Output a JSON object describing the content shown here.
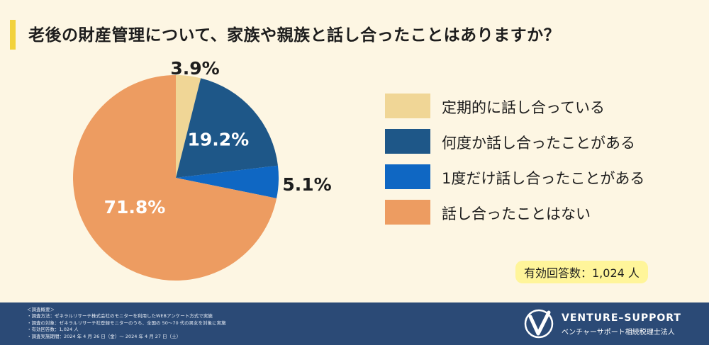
{
  "title": "老後の財産管理について、家族や親族と話し合ったことはありますか？",
  "chart_data": {
    "type": "pie",
    "title": "老後の財産管理について、家族や親族と話し合ったことはありますか？",
    "categories": [
      "定期的に話し合っている",
      "何度か話し合ったことがある",
      "1度だけ話し合ったことがある",
      "話し合ったことはない"
    ],
    "values": [
      3.9,
      19.2,
      5.1,
      71.8
    ],
    "data_labels": [
      "3.9%",
      "19.2%",
      "5.1%",
      "71.8%"
    ],
    "colors": [
      "#f0d696",
      "#1e5788",
      "#0f67c3",
      "#ed9c61"
    ],
    "start": "12 o'clock, clockwise",
    "legend_position": "right"
  },
  "legend": [
    {
      "label": "定期的に話し合っている",
      "color": "#f0d696"
    },
    {
      "label": "何度か話し合ったことがある",
      "color": "#1e5788"
    },
    {
      "label": "1度だけ話し合ったことがある",
      "color": "#0f67c3"
    },
    {
      "label": "話し合ったことはない",
      "color": "#ed9c61"
    }
  ],
  "respondents": "有効回答数：1,024 人",
  "footer": {
    "notes": [
      "＜調査概要＞",
      "・調査方法：ゼネラルリサーチ株式会社のモニターを利用したWEBアンケート方式で実施",
      "・調査の対象：ゼネラルリサーチ社登録モニターのうち、全国の 50〜70 代の男女を対象に実施",
      "・有効回答数：1,024 人",
      "・調査実施期間：2024 年 4 月 26 日（金）〜 2024 年 4 月 27 日（土）"
    ],
    "brand_name": "VENTURE–SUPPORT",
    "brand_sub": "ベンチャーサポート相続税理士法人"
  }
}
